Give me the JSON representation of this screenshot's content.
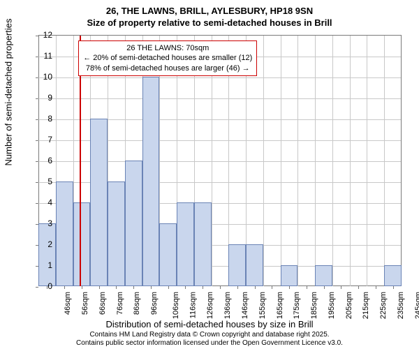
{
  "title_main": "26, THE LAWNS, BRILL, AYLESBURY, HP18 9SN",
  "title_sub": "Size of property relative to semi-detached houses in Brill",
  "ylabel": "Number of semi-detached properties",
  "xlabel": "Distribution of semi-detached houses by size in Brill",
  "footer_line1": "Contains HM Land Registry data © Crown copyright and database right 2025.",
  "footer_line2": "Contains public sector information licensed under the Open Government Licence v3.0.",
  "annotation": {
    "line1": "26 THE LAWNS: 70sqm",
    "line2": "← 20% of semi-detached houses are smaller (12)",
    "line3": "78% of semi-detached houses are larger (46) →"
  },
  "chart": {
    "type": "histogram",
    "ylim": [
      0,
      12
    ],
    "ytick_step": 1,
    "categories": [
      "46sqm",
      "56sqm",
      "66sqm",
      "76sqm",
      "86sqm",
      "96sqm",
      "106sqm",
      "116sqm",
      "126sqm",
      "136sqm",
      "146sqm",
      "155sqm",
      "165sqm",
      "175sqm",
      "185sqm",
      "195sqm",
      "205sqm",
      "215sqm",
      "225sqm",
      "235sqm",
      "245sqm"
    ],
    "values": [
      3,
      5,
      4,
      8,
      5,
      6,
      10,
      3,
      4,
      4,
      0,
      2,
      2,
      0,
      1,
      0,
      1,
      0,
      0,
      0,
      1
    ],
    "bar_color": "#c9d6ed",
    "bar_border_color": "#6a83b5",
    "grid_color": "#c8c8c8",
    "axis_color": "#7a7a7a",
    "background_color": "#ffffff",
    "reference_line": {
      "x_index": 2.4,
      "color": "#cc0000",
      "width": 2
    },
    "annotation_box": {
      "left_pct": 11,
      "top_pct": 2,
      "border_color": "#cc0000"
    }
  }
}
